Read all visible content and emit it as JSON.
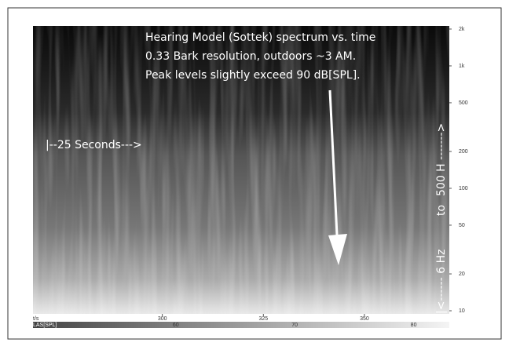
{
  "chart_data": {
    "type": "spectrogram",
    "title_lines": [
      "Hearing Model (Sottek) spectrum vs. time",
      "0.33 Bark resolution, outdoors ~3 AM.",
      "Peak levels slightly exceed 90 dB[SPL]."
    ],
    "annotations": [
      "|--25 Seconds--->",
      "|<------ 6 Hz",
      "to",
      "500 H ------->"
    ],
    "xlabel": "t/s",
    "xlim": [
      268,
      371
    ],
    "xticks": [
      300,
      325,
      350
    ],
    "yscale": "log",
    "ylim": [
      10,
      2000
    ],
    "yticks": [
      {
        "value": 2000,
        "label": "2k"
      },
      {
        "value": 1000,
        "label": "1k"
      },
      500,
      200,
      100,
      50,
      20,
      10
    ],
    "colorbar_label": "LAS[SPL]",
    "clim": [
      48,
      83
    ],
    "cticks": [
      60,
      70,
      80
    ]
  }
}
